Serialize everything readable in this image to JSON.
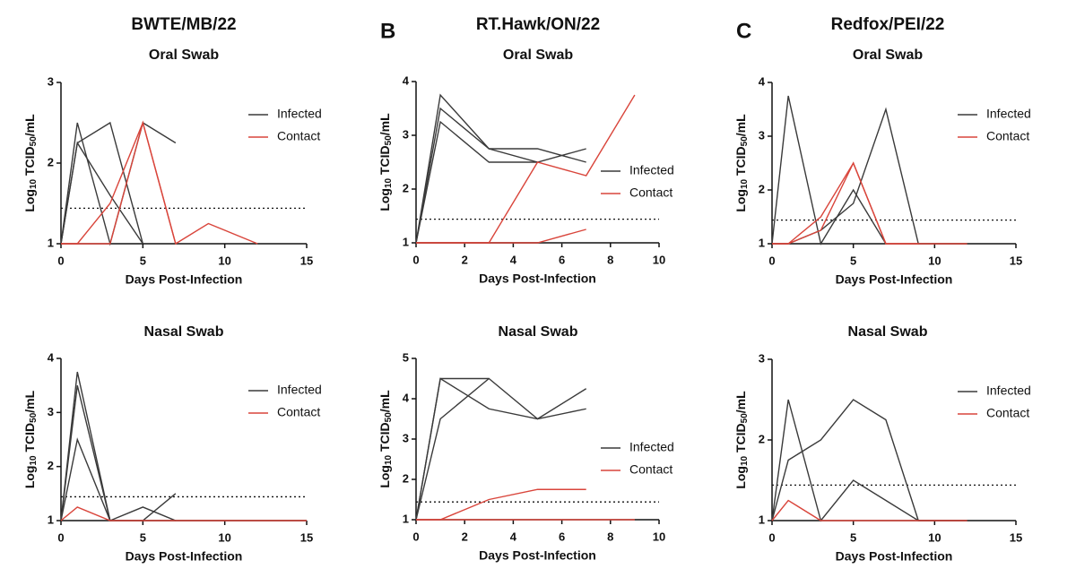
{
  "chart_data": [
    {
      "type": "line",
      "title": "BWTE/MB/22",
      "subtitle": "Oral Swab",
      "xlabel": "Days Post-Infection",
      "ylabel": [
        "Log",
        "10",
        " TCID",
        "50",
        "/mL"
      ],
      "x": [
        0,
        1,
        3,
        5,
        7,
        9,
        12
      ],
      "xlim": [
        0,
        15
      ],
      "xticks": [
        0,
        5,
        10,
        15
      ],
      "ylim": [
        1,
        3
      ],
      "yticks": [
        1,
        2,
        3
      ],
      "threshold": 1.44,
      "legend": "upper right",
      "series": [
        {
          "name": "Infected",
          "color": "#3a3a3a",
          "lines": [
            [
              1,
              2.25,
              2.5,
              1,
              null,
              null,
              null
            ],
            [
              1,
              2.5,
              1,
              2.5,
              2.25,
              null,
              null
            ],
            [
              1,
              2.25,
              1.6,
              1,
              null,
              null,
              null
            ]
          ]
        },
        {
          "name": "Contact",
          "color": "#d9453b",
          "lines": [
            [
              1,
              1,
              1.5,
              2.5,
              1,
              1.25,
              1
            ],
            [
              1,
              1,
              1,
              2.5,
              1,
              null,
              null
            ]
          ]
        }
      ]
    },
    {
      "type": "line",
      "panel_label": "B",
      "title": "RT.Hawk/ON/22",
      "subtitle": "Oral Swab",
      "xlabel": "Days Post-Infection",
      "ylabel": [
        "Log",
        "10",
        " TCID",
        "50",
        "/mL"
      ],
      "x": [
        0,
        1,
        3,
        5,
        7,
        9
      ],
      "xlim": [
        0,
        10
      ],
      "xticks": [
        0,
        2,
        4,
        6,
        8,
        10
      ],
      "ylim": [
        1,
        4
      ],
      "yticks": [
        1,
        2,
        3,
        4
      ],
      "threshold": 1.44,
      "legend": "center right",
      "series": [
        {
          "name": "Infected",
          "color": "#3a3a3a",
          "lines": [
            [
              1,
              3.75,
              2.75,
              2.75,
              2.5,
              null
            ],
            [
              1,
              3.5,
              2.75,
              2.5,
              2.75,
              null
            ],
            [
              1,
              3.25,
              2.5,
              2.5,
              null,
              null
            ],
            [
              1,
              1,
              1,
              1,
              1,
              null
            ]
          ]
        },
        {
          "name": "Contact",
          "color": "#d9453b",
          "lines": [
            [
              1,
              1,
              1,
              2.5,
              2.25,
              3.75
            ],
            [
              1,
              1,
              1,
              1,
              1.25,
              null
            ]
          ]
        }
      ]
    },
    {
      "type": "line",
      "panel_label": "C",
      "title": "Redfox/PEI/22",
      "subtitle": "Oral Swab",
      "xlabel": "Days Post-Infection",
      "ylabel": [
        "Log",
        "10",
        " TCID",
        "50",
        "/mL"
      ],
      "x": [
        0,
        1,
        3,
        5,
        7,
        9,
        12
      ],
      "xlim": [
        0,
        15
      ],
      "xticks": [
        0,
        5,
        10,
        15
      ],
      "ylim": [
        1,
        4
      ],
      "yticks": [
        1,
        2,
        3,
        4
      ],
      "threshold": 1.44,
      "legend": "upper right",
      "series": [
        {
          "name": "Infected",
          "color": "#3a3a3a",
          "lines": [
            [
              1,
              3.75,
              1,
              2,
              1,
              null,
              null
            ],
            [
              1,
              1,
              1.25,
              1.75,
              3.5,
              1,
              1
            ]
          ]
        },
        {
          "name": "Contact",
          "color": "#d9453b",
          "lines": [
            [
              1,
              1,
              1.5,
              2.5,
              1,
              1,
              null
            ],
            [
              1,
              1,
              1.25,
              2.5,
              1,
              1,
              1
            ]
          ]
        }
      ]
    },
    {
      "type": "line",
      "subtitle": "Nasal Swab",
      "xlabel": "Days Post-Infection",
      "ylabel": [
        "Log",
        "10",
        " TCID",
        "50",
        "/mL"
      ],
      "x": [
        0,
        1,
        3,
        5,
        7,
        9,
        12,
        15
      ],
      "xlim": [
        0,
        15
      ],
      "xticks": [
        0,
        5,
        10,
        15
      ],
      "ylim": [
        1,
        4
      ],
      "yticks": [
        1,
        2,
        3,
        4
      ],
      "threshold": 1.44,
      "legend": "upper right",
      "series": [
        {
          "name": "Infected",
          "color": "#3a3a3a",
          "lines": [
            [
              1,
              3.75,
              1,
              1.25,
              1,
              1,
              1,
              1
            ],
            [
              1,
              3.5,
              1,
              1,
              1.5,
              null,
              null,
              null
            ],
            [
              1,
              2.5,
              1,
              1,
              1,
              null,
              null,
              null
            ]
          ]
        },
        {
          "name": "Contact",
          "color": "#d9453b",
          "lines": [
            [
              1,
              1.25,
              1,
              1,
              1,
              1,
              1,
              1
            ]
          ]
        }
      ]
    },
    {
      "type": "line",
      "subtitle": "Nasal Swab",
      "xlabel": "Days Post-Infection",
      "ylabel": [
        "Log",
        "10",
        " TCID",
        "50",
        "/mL"
      ],
      "x": [
        0,
        1,
        3,
        5,
        7,
        9
      ],
      "xlim": [
        0,
        10
      ],
      "xticks": [
        0,
        2,
        4,
        6,
        8,
        10
      ],
      "ylim": [
        1,
        5
      ],
      "yticks": [
        1,
        2,
        3,
        4,
        5
      ],
      "threshold": 1.44,
      "legend": "center right",
      "series": [
        {
          "name": "Infected",
          "color": "#3a3a3a",
          "lines": [
            [
              1,
              4.5,
              3.75,
              3.5,
              3.75,
              null
            ],
            [
              1,
              3.5,
              4.5,
              3.5,
              4.25,
              null
            ],
            [
              1,
              4.5,
              4.5,
              null,
              null,
              null
            ]
          ]
        },
        {
          "name": "Contact",
          "color": "#d9453b",
          "lines": [
            [
              1,
              1,
              1.5,
              1.75,
              1.75,
              null
            ],
            [
              1,
              1,
              1,
              1,
              1,
              1
            ]
          ]
        }
      ]
    },
    {
      "type": "line",
      "subtitle": "Nasal Swab",
      "xlabel": "Days Post-Infection",
      "ylabel": [
        "Log",
        "10",
        " TCID",
        "50",
        "/mL"
      ],
      "x": [
        0,
        1,
        3,
        5,
        7,
        9,
        12
      ],
      "xlim": [
        0,
        15
      ],
      "xticks": [
        0,
        5,
        10,
        15
      ],
      "ylim": [
        1,
        3
      ],
      "yticks": [
        1,
        2,
        3
      ],
      "threshold": 1.44,
      "legend": "upper right",
      "series": [
        {
          "name": "Infected",
          "color": "#3a3a3a",
          "lines": [
            [
              1,
              2.5,
              1,
              1.5,
              1.25,
              1,
              1
            ],
            [
              1,
              1.75,
              2,
              2.5,
              2.25,
              1,
              1
            ]
          ]
        },
        {
          "name": "Contact",
          "color": "#d9453b",
          "lines": [
            [
              1,
              1.25,
              1,
              1,
              1,
              1,
              1
            ]
          ]
        }
      ]
    }
  ]
}
